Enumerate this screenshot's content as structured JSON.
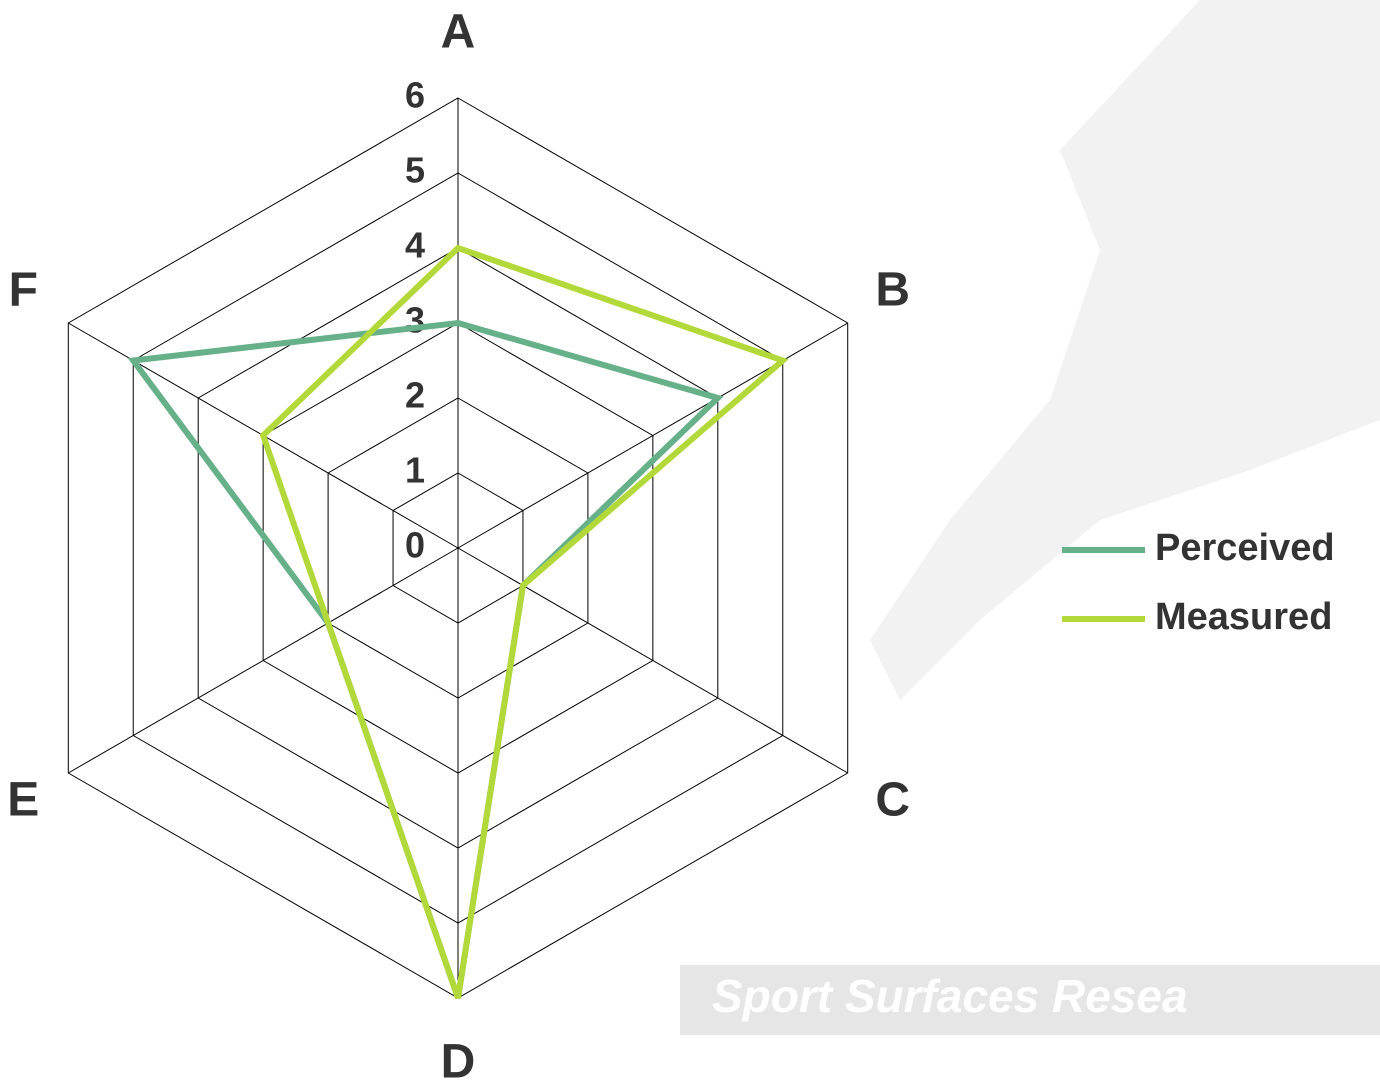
{
  "chart_data": {
    "type": "radar",
    "categories": [
      "A",
      "B",
      "C",
      "D",
      "E",
      "F"
    ],
    "series": [
      {
        "name": "Perceived",
        "color": "#66b08a",
        "values": [
          3,
          4,
          1,
          6,
          2,
          5
        ]
      },
      {
        "name": "Measured",
        "color": "#b3d83a",
        "values": [
          4,
          5,
          1,
          6,
          2,
          3
        ]
      }
    ],
    "rlim": [
      0,
      6
    ],
    "rticks": [
      0,
      1,
      2,
      3,
      4,
      5,
      6
    ],
    "grid": true,
    "legend": "right",
    "watermark": "Sport Surfaces Resea"
  }
}
